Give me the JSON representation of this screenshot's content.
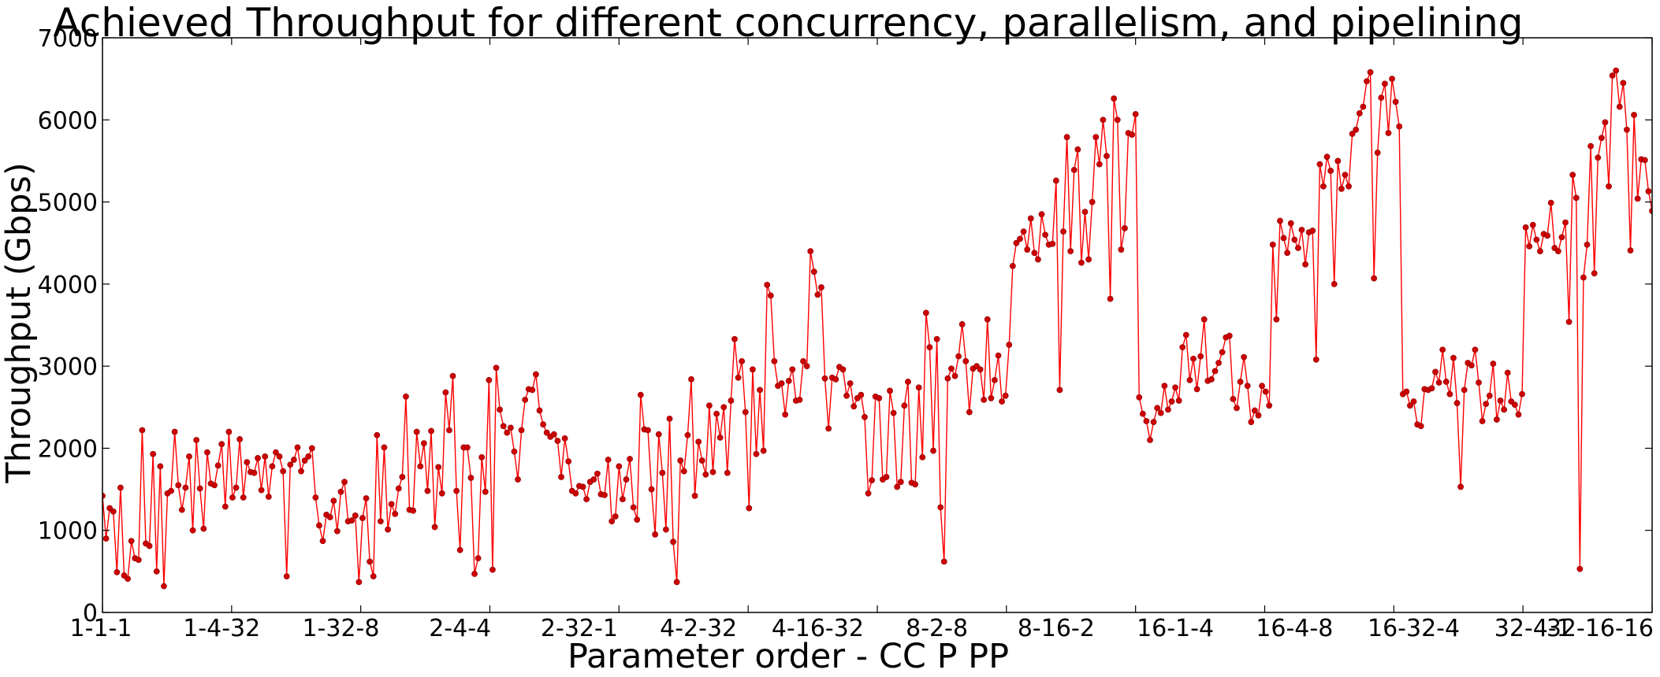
{
  "chart_data": {
    "type": "line",
    "title": "Achieved Throughput for different concurrency, parallelism, and pipelining",
    "xlabel": "Parameter order - CC P PP",
    "ylabel": "Throughput (Gbps)",
    "ylim": [
      0,
      7000
    ],
    "yticks": [
      0,
      1000,
      2000,
      3000,
      4000,
      5000,
      6000,
      7000
    ],
    "xlim": [
      0,
      360
    ],
    "xticks": [
      {
        "pos": 0,
        "label": "1-1-1"
      },
      {
        "pos": 30,
        "label": "1-4-32"
      },
      {
        "pos": 60,
        "label": "1-32-8"
      },
      {
        "pos": 90,
        "label": "2-4-4"
      },
      {
        "pos": 120,
        "label": "2-32-1"
      },
      {
        "pos": 150,
        "label": "4-2-32"
      },
      {
        "pos": 180,
        "label": "4-16-32"
      },
      {
        "pos": 210,
        "label": "8-2-8"
      },
      {
        "pos": 240,
        "label": "8-16-2"
      },
      {
        "pos": 270,
        "label": "16-1-4"
      },
      {
        "pos": 300,
        "label": "16-4-8"
      },
      {
        "pos": 330,
        "label": "16-32-4"
      },
      {
        "pos": 360,
        "label": "32-4-1"
      },
      {
        "pos": 390,
        "label": "32-16-16"
      }
    ],
    "grid": false,
    "series": [
      {
        "color": "#ff0000",
        "marker_color": "#cc0000",
        "values": [
          1420,
          900,
          1270,
          1230,
          490,
          1520,
          450,
          410,
          870,
          660,
          640,
          2220,
          840,
          810,
          1930,
          500,
          1780,
          320,
          1450,
          1480,
          2200,
          1550,
          1250,
          1520,
          1900,
          1000,
          2100,
          1510,
          1020,
          1950,
          1570,
          1550,
          1790,
          2050,
          1290,
          2200,
          1400,
          1520,
          2110,
          1400,
          1830,
          1710,
          1700,
          1880,
          1490,
          1900,
          1410,
          1780,
          1950,
          1900,
          1720,
          440,
          1800,
          1860,
          2010,
          1720,
          1850,
          1900,
          2000,
          1400,
          1060,
          870,
          1190,
          1160,
          1360,
          990,
          1470,
          1590,
          1110,
          1120,
          1180,
          370,
          1150,
          1390,
          620,
          440,
          2160,
          1110,
          2010,
          1010,
          1320,
          1200,
          1510,
          1650,
          2630,
          1250,
          1240,
          2200,
          1780,
          2060,
          1480,
          2210,
          1040,
          1770,
          1450,
          2680,
          2220,
          2880,
          1480,
          760,
          2010,
          2010,
          1640,
          470,
          660,
          1890,
          1470,
          2830,
          520,
          2980,
          2470,
          2270,
          2190,
          2250,
          1960,
          1620,
          2220,
          2590,
          2720,
          2710,
          2900,
          2460,
          2290,
          2190,
          2140,
          2170,
          2090,
          1650,
          2120,
          1840,
          1480,
          1450,
          1540,
          1530,
          1380,
          1590,
          1620,
          1690,
          1440,
          1430,
          1860,
          1110,
          1170,
          1780,
          1380,
          1620,
          1870,
          1280,
          1130,
          2650,
          2230,
          2220,
          1500,
          950,
          2170,
          1700,
          1010,
          2360,
          860,
          370,
          1850,
          1720,
          2160,
          2840,
          1420,
          2080,
          1850,
          1680,
          2520,
          1710,
          2420,
          2130,
          2500,
          1700,
          2580,
          3330,
          2860,
          3060,
          2440,
          1270,
          2960,
          1930,
          2710,
          1970,
          3990,
          3860,
          3060,
          2760,
          2790,
          2410,
          2820,
          2960,
          2580,
          2590,
          3060,
          3000,
          4400,
          4150,
          3870,
          3960,
          2850,
          2240,
          2860,
          2840,
          2990,
          2960,
          2640,
          2790,
          2510,
          2610,
          2650,
          2380,
          1450,
          1610,
          2630,
          2610,
          1620,
          1650,
          2700,
          2430,
          1530,
          1590,
          2520,
          2810,
          1580,
          1560,
          2740,
          1890,
          3650,
          3230,
          1970,
          3330,
          1280,
          620,
          2850,
          2970,
          2880,
          3120,
          3510,
          3060,
          2440,
          2970,
          3000,
          2960,
          2590,
          3570,
          2610,
          2830,
          3130,
          2570,
          2640,
          3260,
          4220,
          4500,
          4550,
          4640,
          4420,
          4800,
          4380,
          4300,
          4850,
          4600,
          4480,
          4490,
          5260,
          2710,
          4640,
          5790,
          4400,
          5390,
          5640,
          4260,
          4880,
          4300,
          5000,
          5790,
          5460,
          6000,
          5560,
          3820,
          6260,
          6000,
          4420,
          4680,
          5840,
          5820,
          6070,
          2620,
          2420,
          2330,
          2100,
          2320,
          2490,
          2430,
          2760,
          2470,
          2570,
          2740,
          2580,
          3230,
          3380,
          2830,
          3090,
          2720,
          3120,
          3570,
          2820,
          2840,
          2940,
          3040,
          3170,
          3350,
          3370,
          2600,
          2490,
          2810,
          3110,
          2760,
          2320,
          2460,
          2400,
          2760,
          2690,
          2520,
          4480,
          3570,
          4770,
          4560,
          4380,
          4740,
          4540,
          4440,
          4660,
          4240,
          4630,
          4650,
          3080,
          5460,
          5190,
          5550,
          5380,
          4000,
          5500,
          5160,
          5330,
          5190,
          5830,
          5880,
          6080,
          6160,
          6470,
          6580,
          4070,
          5600,
          6270,
          6440,
          5840,
          6500,
          6220,
          5920,
          2660,
          2690,
          2520,
          2570,
          2290,
          2270,
          2720,
          2710,
          2730,
          2930,
          2800,
          3200,
          2810,
          2660,
          3100,
          2550,
          1530,
          2710,
          3040,
          3010,
          3200,
          2800,
          2330,
          2540,
          2640,
          3030,
          2350,
          2580,
          2470,
          2920,
          2570,
          2530,
          2410,
          2660,
          4690,
          4460,
          4720,
          4540,
          4400,
          4610,
          4590,
          4990,
          4440,
          4400,
          4570,
          4750,
          3540,
          5330,
          5050,
          530,
          4080,
          4480,
          5680,
          4130,
          5540,
          5780,
          5970,
          5190,
          6540,
          6600,
          6160,
          6450,
          5880,
          4410,
          6060,
          5040,
          5520,
          5510,
          5130,
          4890
        ]
      }
    ]
  }
}
